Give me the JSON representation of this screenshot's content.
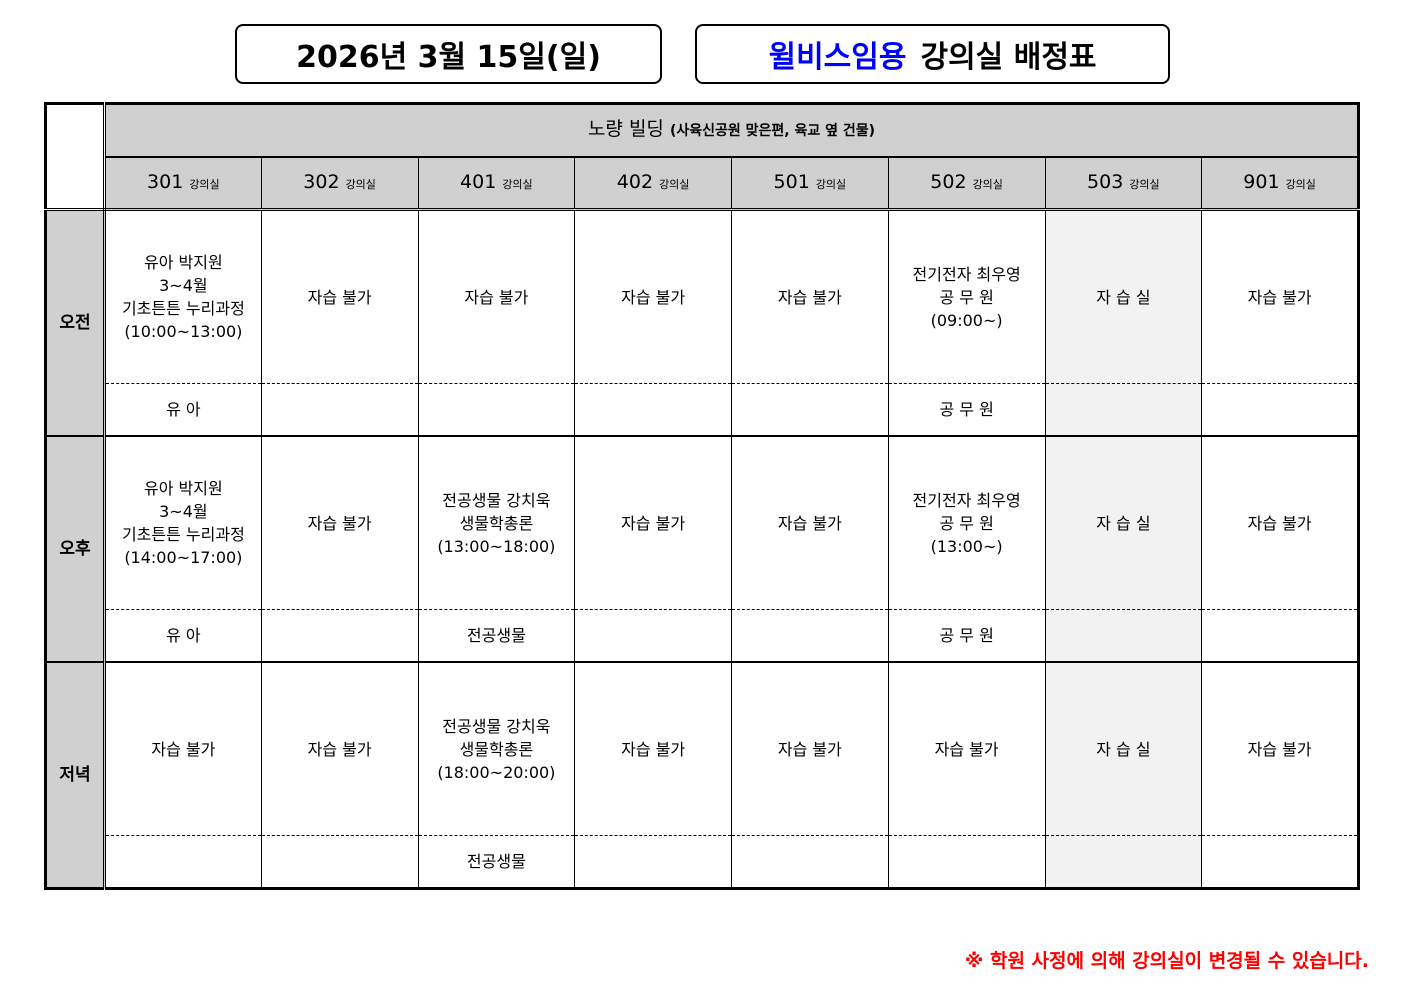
{
  "header": {
    "date": "2026년 3월 15일(일)",
    "title_highlight": "윌비스임용",
    "title_rest": "강의실 배정표",
    "highlight_color": "#0000ff"
  },
  "building": {
    "name": "노량 빌딩",
    "note": "(사육신공원 맞은편, 육교 옆 건물)"
  },
  "rooms": [
    {
      "num": "301",
      "unit": "강의실"
    },
    {
      "num": "302",
      "unit": "강의실"
    },
    {
      "num": "401",
      "unit": "강의실"
    },
    {
      "num": "402",
      "unit": "강의실"
    },
    {
      "num": "501",
      "unit": "강의실"
    },
    {
      "num": "502",
      "unit": "강의실"
    },
    {
      "num": "503",
      "unit": "강의실"
    },
    {
      "num": "901",
      "unit": "강의실"
    }
  ],
  "periods": [
    {
      "label": "오전",
      "main": [
        [
          "유아 박지원",
          "3~4월",
          "기초튼튼 누리과정",
          "(10:00~13:00)"
        ],
        [
          "자습 불가"
        ],
        [
          "자습 불가"
        ],
        [
          "자습 불가"
        ],
        [
          "자습 불가"
        ],
        [
          "전기전자 최우영",
          "공 무 원",
          "(09:00~)"
        ],
        [
          "자 습 실"
        ],
        [
          "자습 불가"
        ]
      ],
      "sub": [
        "유  아",
        "",
        "",
        "",
        "",
        "공 무 원",
        "",
        ""
      ]
    },
    {
      "label": "오후",
      "main": [
        [
          "유아 박지원",
          "3~4월",
          "기초튼튼 누리과정",
          "(14:00~17:00)"
        ],
        [
          "자습 불가"
        ],
        [
          "전공생물 강치욱",
          "생물학총론",
          "(13:00~18:00)"
        ],
        [
          "자습 불가"
        ],
        [
          "자습 불가"
        ],
        [
          "전기전자 최우영",
          "공 무 원",
          "(13:00~)"
        ],
        [
          "자 습 실"
        ],
        [
          "자습 불가"
        ]
      ],
      "sub": [
        "유  아",
        "",
        "전공생물",
        "",
        "",
        "공 무 원",
        "",
        ""
      ]
    },
    {
      "label": "저녁",
      "main": [
        [
          "자습 불가"
        ],
        [
          "자습 불가"
        ],
        [
          "전공생물 강치욱",
          "생물학총론",
          "(18:00~20:00)"
        ],
        [
          "자습 불가"
        ],
        [
          "자습 불가"
        ],
        [
          "자습 불가"
        ],
        [
          "자 습 실"
        ],
        [
          "자습 불가"
        ]
      ],
      "sub": [
        "",
        "",
        "전공생물",
        "",
        "",
        "",
        "",
        ""
      ]
    }
  ],
  "footer_note": "※ 학원 사정에 의해 강의실이 변경될 수 있습니다."
}
